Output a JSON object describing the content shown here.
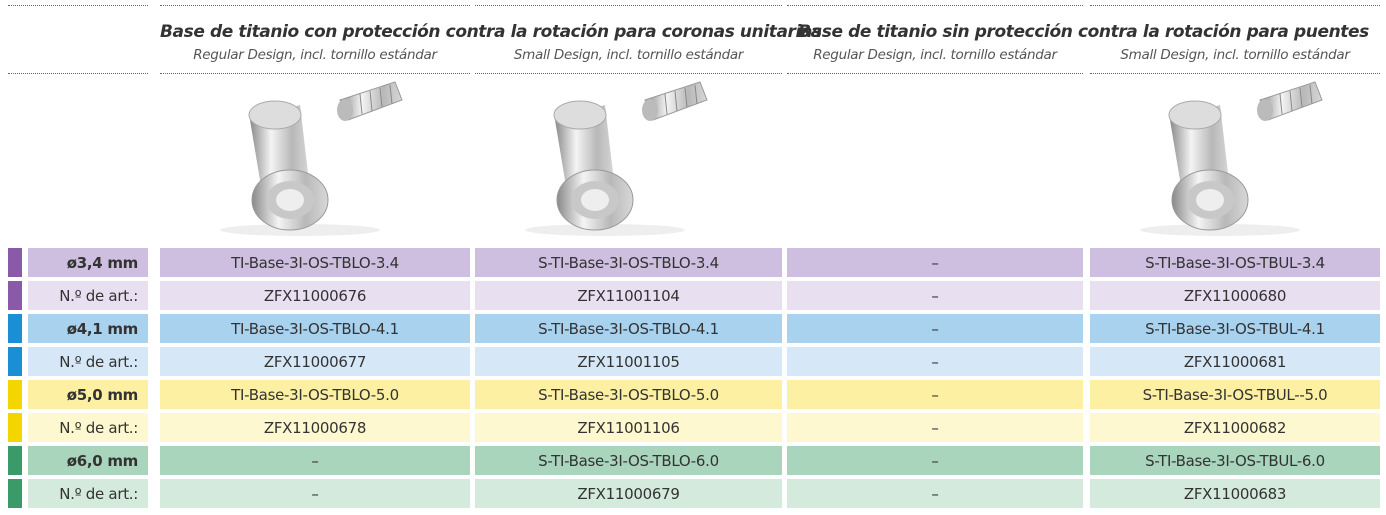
{
  "groups": [
    {
      "title": "Base de titanio con protección contra la rotación para coronas unitarias",
      "columns": [
        "Regular Design, incl. tornillo estándar",
        "Small Design, incl. tornillo estándar"
      ]
    },
    {
      "title": "Base de titanio sin protección contra la rotación para puentes",
      "columns": [
        "Regular Design, incl. tornillo estándar",
        "Small Design, incl. tornillo estándar"
      ]
    }
  ],
  "rows": [
    {
      "label": "ø3,4 mm",
      "cells": [
        "TI-Base-3I-OS-TBLO-3.4",
        "S-TI-Base-3I-OS-TBLO-3.4",
        "–",
        "S-TI-Base-3I-OS-TBUL-3.4"
      ]
    },
    {
      "label": "N.º de art.:",
      "cells": [
        "ZFX11000676",
        "ZFX11001104",
        "–",
        "ZFX11000680"
      ]
    },
    {
      "label": "ø4,1 mm",
      "cells": [
        "TI-Base-3I-OS-TBLO-4.1",
        "S-TI-Base-3I-OS-TBLO-4.1",
        "–",
        "S-TI-Base-3I-OS-TBUL-4.1"
      ]
    },
    {
      "label": "N.º de art.:",
      "cells": [
        "ZFX11000677",
        "ZFX11001105",
        "–",
        "ZFX11000681"
      ]
    },
    {
      "label": "ø5,0 mm",
      "cells": [
        "TI-Base-3I-OS-TBLO-5.0",
        "S-TI-Base-3I-OS-TBLO-5.0",
        "–",
        "S-TI-Base-3I-OS-TBUL--5.0"
      ]
    },
    {
      "label": "N.º de art.:",
      "cells": [
        "ZFX11000678",
        "ZFX11001106",
        "–",
        "ZFX11000682"
      ]
    },
    {
      "label": "ø6,0 mm",
      "cells": [
        "–",
        "S-TI-Base-3I-OS-TBLO-6.0",
        "–",
        "S-TI-Base-3I-OS-TBUL-6.0"
      ]
    },
    {
      "label": "N.º de art.:",
      "cells": [
        "–",
        "ZFX11000679",
        "–",
        "ZFX11000683"
      ]
    }
  ]
}
